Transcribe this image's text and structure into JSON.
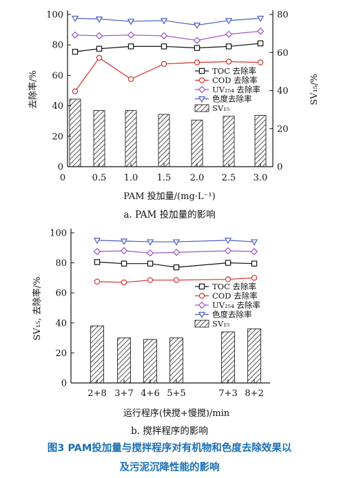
{
  "caption": {
    "line1": "图3   PAM投加量与搅拌程序对有机物和色度去除效果以",
    "line2": "及污泥沉降性能的影响"
  },
  "chart_data": [
    {
      "type": "bar+line",
      "subtitle": "a. PAM 投加量的影响",
      "xlabel": "PAM 投加量/(mg·L⁻¹)",
      "ylabel_left": "去除率/%",
      "ylabel_right": "SV₁₅/%",
      "x_ticks": [
        "0",
        "0.5",
        "1.0",
        "1.5",
        "2.0",
        "2.5",
        "3.0"
      ],
      "x_values": [
        0.2,
        0.5,
        1.0,
        1.5,
        2.0,
        2.5,
        3.0
      ],
      "ylim_left": [
        0,
        100
      ],
      "yticks_left": [
        "0",
        "20",
        "40",
        "60",
        "80",
        "100"
      ],
      "ylim_right": [
        0,
        80
      ],
      "yticks_right": [
        "0",
        "20",
        "40",
        "60",
        "80"
      ],
      "series": [
        {
          "name": "TOC 去除率",
          "marker": "square",
          "color": "#111111",
          "values": [
            75.5,
            77.5,
            79,
            79,
            78,
            79,
            81
          ]
        },
        {
          "name": "COD 去除率",
          "marker": "circle",
          "color": "#d4302a",
          "values": [
            49.5,
            71.5,
            57.5,
            67.5,
            68.5,
            69,
            68.5
          ]
        },
        {
          "name": "UV₂₅₄ 去除率",
          "marker": "diamond",
          "color": "#9a4fc8",
          "values": [
            86.5,
            86,
            86.5,
            86,
            83,
            87,
            89
          ]
        },
        {
          "name": "色度去除率",
          "marker": "triangle-down",
          "color": "#4a5cc4",
          "values": [
            97.5,
            97,
            95.5,
            96,
            93,
            96,
            97.5
          ]
        }
      ],
      "bars": {
        "name": "SV₁₅",
        "axis": "right",
        "values": [
          35.5,
          29.5,
          29.5,
          27.5,
          24.5,
          26.5,
          27
        ]
      },
      "legend": [
        "TOC 去除率",
        "COD 去除率",
        "UV₂₅₄ 去除率",
        "色度去除率",
        "SV₁₅"
      ],
      "legend_position": "center-right"
    },
    {
      "type": "bar+line",
      "subtitle": "b. 搅拌程序的影响",
      "xlabel": "运行程序(快搅+慢搅)/min",
      "ylabel": "SV₁₅, 去除率/%",
      "categories": [
        "2+8",
        "3+7",
        "4+6",
        "5+5",
        "7+3",
        "8+2"
      ],
      "ylim": [
        0,
        100
      ],
      "yticks": [
        "0",
        "20",
        "40",
        "60",
        "80",
        "100"
      ],
      "series": [
        {
          "name": "TOC 去除率",
          "marker": "square",
          "color": "#111111",
          "values": [
            80.5,
            79.5,
            79.5,
            77,
            80,
            79.5
          ]
        },
        {
          "name": "COD 去除率",
          "marker": "circle",
          "color": "#d4302a",
          "values": [
            67.5,
            67,
            68.5,
            68.5,
            69,
            70
          ]
        },
        {
          "name": "UV₂₅₄ 去除率",
          "marker": "diamond",
          "color": "#9a4fc8",
          "values": [
            87.5,
            88,
            86.5,
            87,
            88,
            87.5
          ]
        },
        {
          "name": "色度去除率",
          "marker": "triangle-down",
          "color": "#4a5cc4",
          "values": [
            95,
            94.5,
            94,
            94,
            95,
            94
          ]
        }
      ],
      "bars": {
        "name": "SV₁₅",
        "values": [
          38,
          30,
          29,
          30,
          34,
          36
        ]
      },
      "legend": [
        "TOC 去除率",
        "COD 去除率",
        "UV₂₅₄ 去除率",
        "色度去除率",
        "SV₁₅"
      ],
      "legend_position": "center-right"
    }
  ]
}
